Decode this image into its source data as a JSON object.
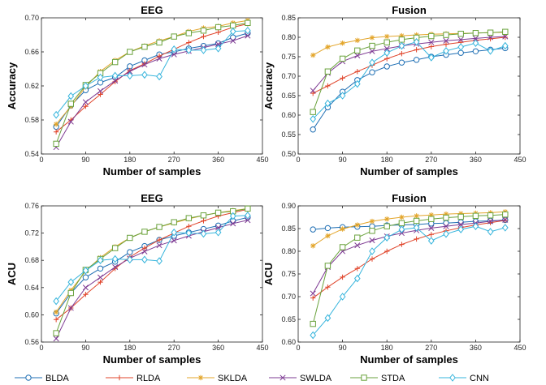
{
  "series_styles": [
    {
      "name": "BLDA",
      "color": "#1f6fb4",
      "marker": "circle"
    },
    {
      "name": "RLDA",
      "color": "#e0452b",
      "marker": "plus"
    },
    {
      "name": "SKLDA",
      "color": "#e3a52a",
      "marker": "star"
    },
    {
      "name": "SWLDA",
      "color": "#7e3b93",
      "marker": "x"
    },
    {
      "name": "STDA",
      "color": "#6aa23c",
      "marker": "square"
    },
    {
      "name": "CNN",
      "color": "#35b4dc",
      "marker": "diamond"
    }
  ],
  "chart_data": [
    {
      "type": "line",
      "title": "EEG",
      "xlabel": "Number of samples",
      "ylabel": "Accuracy",
      "xlim": [
        0,
        450
      ],
      "ylim": [
        0.54,
        0.7
      ],
      "xticks": [
        "0",
        "90",
        "180",
        "270",
        "360",
        "450"
      ],
      "yticks": [
        "0.54",
        "0.58",
        "0.62",
        "0.66",
        "0.70"
      ],
      "x": [
        30,
        60,
        90,
        120,
        150,
        180,
        210,
        240,
        270,
        300,
        330,
        360,
        390,
        420
      ],
      "series": [
        {
          "name": "BLDA",
          "values": [
            0.572,
            0.597,
            0.615,
            0.624,
            0.63,
            0.643,
            0.65,
            0.657,
            0.66,
            0.664,
            0.667,
            0.67,
            0.677,
            0.682
          ]
        },
        {
          "name": "RLDA",
          "values": [
            0.566,
            0.58,
            0.596,
            0.61,
            0.625,
            0.638,
            0.646,
            0.655,
            0.663,
            0.671,
            0.678,
            0.683,
            0.689,
            0.693
          ]
        },
        {
          "name": "SKLDA",
          "values": [
            0.575,
            0.596,
            0.619,
            0.637,
            0.65,
            0.66,
            0.667,
            0.673,
            0.678,
            0.684,
            0.688,
            0.69,
            0.694,
            0.697
          ]
        },
        {
          "name": "SWLDA",
          "values": [
            0.548,
            0.578,
            0.601,
            0.614,
            0.626,
            0.637,
            0.645,
            0.652,
            0.657,
            0.661,
            0.665,
            0.669,
            0.673,
            0.679
          ]
        },
        {
          "name": "STDA",
          "values": [
            0.552,
            0.599,
            0.621,
            0.635,
            0.648,
            0.66,
            0.666,
            0.671,
            0.678,
            0.682,
            0.685,
            0.689,
            0.691,
            0.694
          ]
        },
        {
          "name": "CNN",
          "values": [
            0.586,
            0.608,
            0.62,
            0.63,
            0.632,
            0.632,
            0.633,
            0.631,
            0.663,
            0.662,
            0.662,
            0.664,
            0.684,
            0.685
          ]
        }
      ]
    },
    {
      "type": "line",
      "title": "Fusion",
      "xlabel": "Number of samples",
      "ylabel": "Accuracy",
      "xlim": [
        0,
        450
      ],
      "ylim": [
        0.5,
        0.85
      ],
      "xticks": [
        "0",
        "90",
        "180",
        "270",
        "360",
        "450"
      ],
      "yticks": [
        "0.50",
        "0.55",
        "0.60",
        "0.65",
        "0.70",
        "0.75",
        "0.80",
        "0.85"
      ],
      "x": [
        30,
        60,
        90,
        120,
        150,
        180,
        210,
        240,
        270,
        300,
        330,
        360,
        390,
        420
      ],
      "series": [
        {
          "name": "BLDA",
          "values": [
            0.563,
            0.62,
            0.66,
            0.69,
            0.71,
            0.725,
            0.735,
            0.742,
            0.75,
            0.755,
            0.76,
            0.764,
            0.768,
            0.772
          ]
        },
        {
          "name": "RLDA",
          "values": [
            0.656,
            0.675,
            0.695,
            0.712,
            0.728,
            0.745,
            0.758,
            0.768,
            0.776,
            0.782,
            0.787,
            0.792,
            0.796,
            0.8
          ]
        },
        {
          "name": "SKLDA",
          "values": [
            0.754,
            0.775,
            0.785,
            0.792,
            0.799,
            0.802,
            0.804,
            0.806,
            0.808,
            0.809,
            0.81,
            0.811,
            0.812,
            0.813
          ]
        },
        {
          "name": "SWLDA",
          "values": [
            0.663,
            0.708,
            0.738,
            0.753,
            0.764,
            0.771,
            0.778,
            0.783,
            0.787,
            0.791,
            0.794,
            0.797,
            0.8,
            0.802
          ]
        },
        {
          "name": "STDA",
          "values": [
            0.608,
            0.712,
            0.745,
            0.766,
            0.778,
            0.787,
            0.794,
            0.799,
            0.803,
            0.806,
            0.809,
            0.811,
            0.812,
            0.814
          ]
        },
        {
          "name": "CNN",
          "values": [
            0.59,
            0.63,
            0.65,
            0.68,
            0.735,
            0.76,
            0.778,
            0.788,
            0.748,
            0.765,
            0.775,
            0.785,
            0.765,
            0.778
          ]
        }
      ]
    },
    {
      "type": "line",
      "title": "EEG",
      "xlabel": "Number of samples",
      "ylabel": "ACU",
      "xlim": [
        0,
        450
      ],
      "ylim": [
        0.56,
        0.76
      ],
      "xticks": [
        "0",
        "90",
        "180",
        "270",
        "360",
        "450"
      ],
      "yticks": [
        "0.56",
        "0.60",
        "0.64",
        "0.68",
        "0.72",
        "0.76"
      ],
      "x": [
        30,
        60,
        90,
        120,
        150,
        180,
        210,
        240,
        270,
        300,
        330,
        360,
        390,
        420
      ],
      "series": [
        {
          "name": "BLDA",
          "values": [
            0.602,
            0.632,
            0.655,
            0.668,
            0.678,
            0.692,
            0.701,
            0.71,
            0.716,
            0.721,
            0.726,
            0.731,
            0.738,
            0.743
          ]
        },
        {
          "name": "RLDA",
          "values": [
            0.593,
            0.61,
            0.63,
            0.648,
            0.668,
            0.685,
            0.698,
            0.71,
            0.72,
            0.73,
            0.738,
            0.745,
            0.75,
            0.755
          ]
        },
        {
          "name": "SKLDA",
          "values": [
            0.604,
            0.636,
            0.664,
            0.684,
            0.7,
            0.713,
            0.722,
            0.729,
            0.735,
            0.741,
            0.746,
            0.75,
            0.753,
            0.756
          ]
        },
        {
          "name": "SWLDA",
          "values": [
            0.565,
            0.61,
            0.64,
            0.655,
            0.67,
            0.683,
            0.693,
            0.702,
            0.709,
            0.716,
            0.722,
            0.728,
            0.734,
            0.739
          ]
        },
        {
          "name": "STDA",
          "values": [
            0.573,
            0.632,
            0.666,
            0.682,
            0.698,
            0.713,
            0.722,
            0.729,
            0.736,
            0.742,
            0.746,
            0.75,
            0.752,
            0.756
          ]
        },
        {
          "name": "CNN",
          "values": [
            0.62,
            0.648,
            0.665,
            0.68,
            0.682,
            0.681,
            0.681,
            0.679,
            0.721,
            0.72,
            0.719,
            0.721,
            0.745,
            0.746
          ]
        }
      ]
    },
    {
      "type": "line",
      "title": "Fusion",
      "xlabel": "Number of samples",
      "ylabel": "ACU",
      "xlim": [
        0,
        450
      ],
      "ylim": [
        0.6,
        0.9
      ],
      "xticks": [
        "0",
        "90",
        "180",
        "270",
        "360",
        "450"
      ],
      "yticks": [
        "0.60",
        "0.65",
        "0.70",
        "0.75",
        "0.80",
        "0.85",
        "0.90"
      ],
      "x": [
        30,
        60,
        90,
        120,
        150,
        180,
        210,
        240,
        270,
        300,
        330,
        360,
        390,
        420
      ],
      "series": [
        {
          "name": "BLDA",
          "values": [
            0.848,
            0.851,
            0.853,
            0.854,
            0.855,
            0.857,
            0.858,
            0.859,
            0.861,
            0.862,
            0.864,
            0.866,
            0.867,
            0.869
          ]
        },
        {
          "name": "RLDA",
          "values": [
            0.697,
            0.721,
            0.743,
            0.762,
            0.783,
            0.8,
            0.815,
            0.827,
            0.837,
            0.845,
            0.852,
            0.858,
            0.863,
            0.868
          ]
        },
        {
          "name": "SKLDA",
          "values": [
            0.812,
            0.834,
            0.849,
            0.858,
            0.866,
            0.871,
            0.875,
            0.878,
            0.88,
            0.882,
            0.883,
            0.884,
            0.885,
            0.887
          ]
        },
        {
          "name": "SWLDA",
          "values": [
            0.707,
            0.765,
            0.8,
            0.813,
            0.824,
            0.833,
            0.84,
            0.846,
            0.851,
            0.855,
            0.859,
            0.862,
            0.866,
            0.869
          ]
        },
        {
          "name": "STDA",
          "values": [
            0.64,
            0.768,
            0.809,
            0.83,
            0.845,
            0.855,
            0.862,
            0.867,
            0.871,
            0.874,
            0.876,
            0.878,
            0.879,
            0.881
          ]
        },
        {
          "name": "CNN",
          "values": [
            0.615,
            0.653,
            0.7,
            0.74,
            0.8,
            0.83,
            0.848,
            0.852,
            0.823,
            0.838,
            0.848,
            0.855,
            0.843,
            0.852
          ]
        }
      ]
    }
  ]
}
